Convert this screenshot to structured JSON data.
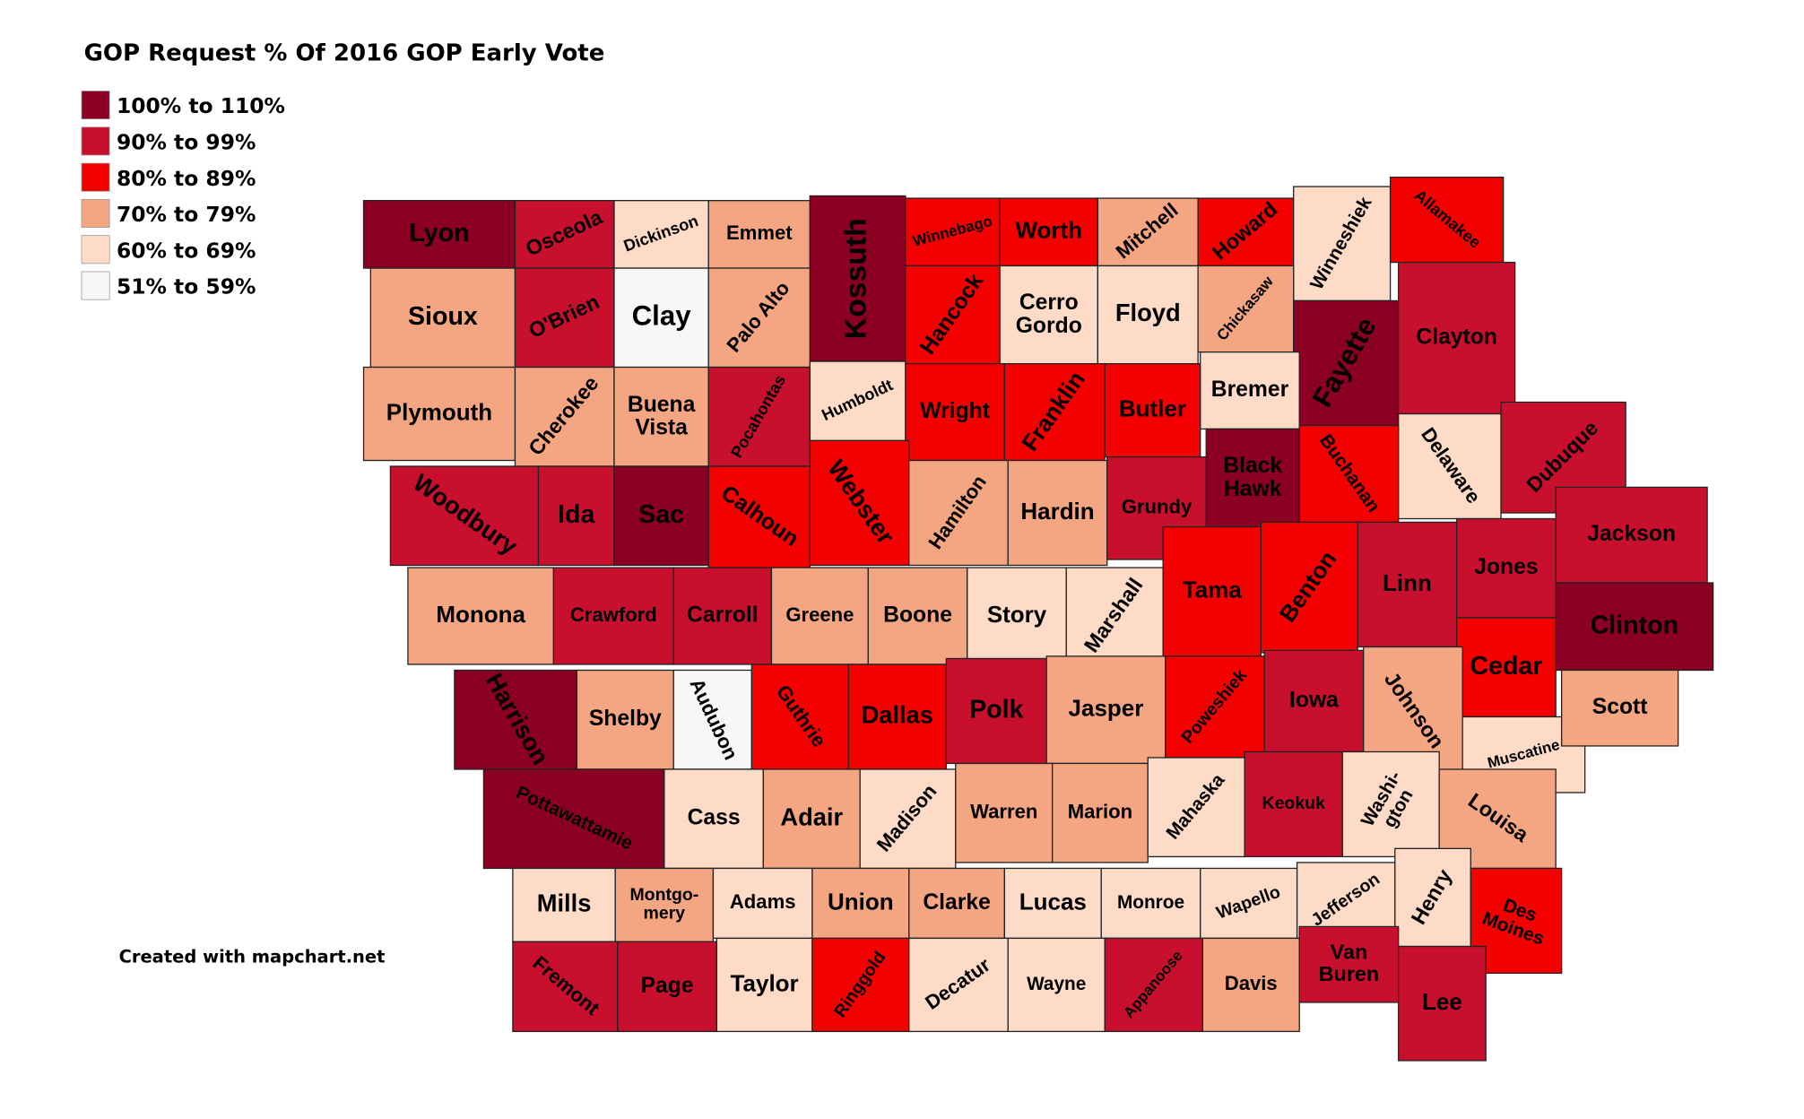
{
  "title": "GOP Request % Of 2016 GOP Early Vote",
  "legend": [
    {
      "label": "100% to 110%",
      "color": "#8b0022"
    },
    {
      "label": "90% to 99%",
      "color": "#c8102e"
    },
    {
      "label": "80% to 89%",
      "color": "#f50000"
    },
    {
      "label": "70% to 79%",
      "color": "#f4a582"
    },
    {
      "label": "60% to 69%",
      "color": "#fddbc7"
    },
    {
      "label": "51% to 59%",
      "color": "#f7f7f7"
    }
  ],
  "footer": "Created with mapchart.net",
  "counties": [
    {
      "name": "Lyon",
      "group": 0
    },
    {
      "name": "Osceola",
      "group": 1
    },
    {
      "name": "Dickinson",
      "group": 4
    },
    {
      "name": "Emmet",
      "group": 3
    },
    {
      "name": "Kossuth",
      "group": 0
    },
    {
      "name": "Winnebago",
      "group": 2
    },
    {
      "name": "Worth",
      "group": 2
    },
    {
      "name": "Mitchell",
      "group": 3
    },
    {
      "name": "Howard",
      "group": 2
    },
    {
      "name": "Winneshiek",
      "group": 4
    },
    {
      "name": "Allamakee",
      "group": 2
    },
    {
      "name": "Sioux",
      "group": 3
    },
    {
      "name": "O'Brien",
      "group": 1
    },
    {
      "name": "Clay",
      "group": 5
    },
    {
      "name": "Palo Alto",
      "group": 3
    },
    {
      "name": "Hancock",
      "group": 2
    },
    {
      "name": "Cerro Gordo",
      "group": 4
    },
    {
      "name": "Floyd",
      "group": 4
    },
    {
      "name": "Chickasaw",
      "group": 3
    },
    {
      "name": "Fayette",
      "group": 0
    },
    {
      "name": "Clayton",
      "group": 1
    },
    {
      "name": "Plymouth",
      "group": 3
    },
    {
      "name": "Cherokee",
      "group": 3
    },
    {
      "name": "Buena Vista",
      "group": 3
    },
    {
      "name": "Pocahontas",
      "group": 1
    },
    {
      "name": "Humboldt",
      "group": 4
    },
    {
      "name": "Wright",
      "group": 2
    },
    {
      "name": "Franklin",
      "group": 2
    },
    {
      "name": "Butler",
      "group": 2
    },
    {
      "name": "Bremer",
      "group": 4
    },
    {
      "name": "Delaware",
      "group": 4
    },
    {
      "name": "Dubuque",
      "group": 1
    },
    {
      "name": "Woodbury",
      "group": 1
    },
    {
      "name": "Ida",
      "group": 1
    },
    {
      "name": "Sac",
      "group": 0
    },
    {
      "name": "Calhoun",
      "group": 2
    },
    {
      "name": "Webster",
      "group": 2
    },
    {
      "name": "Hamilton",
      "group": 3
    },
    {
      "name": "Hardin",
      "group": 3
    },
    {
      "name": "Grundy",
      "group": 1
    },
    {
      "name": "Black Hawk",
      "group": 0
    },
    {
      "name": "Buchanan",
      "group": 2
    },
    {
      "name": "Linn",
      "group": 1
    },
    {
      "name": "Jones",
      "group": 1
    },
    {
      "name": "Jackson",
      "group": 1
    },
    {
      "name": "Monona",
      "group": 3
    },
    {
      "name": "Crawford",
      "group": 1
    },
    {
      "name": "Carroll",
      "group": 1
    },
    {
      "name": "Greene",
      "group": 3
    },
    {
      "name": "Boone",
      "group": 3
    },
    {
      "name": "Story",
      "group": 4
    },
    {
      "name": "Marshall",
      "group": 4
    },
    {
      "name": "Tama",
      "group": 2
    },
    {
      "name": "Benton",
      "group": 2
    },
    {
      "name": "Clinton",
      "group": 0
    },
    {
      "name": "Cedar",
      "group": 2
    },
    {
      "name": "Harrison",
      "group": 0
    },
    {
      "name": "Shelby",
      "group": 3
    },
    {
      "name": "Audubon",
      "group": 5
    },
    {
      "name": "Guthrie",
      "group": 2
    },
    {
      "name": "Dallas",
      "group": 2
    },
    {
      "name": "Polk",
      "group": 1
    },
    {
      "name": "Jasper",
      "group": 3
    },
    {
      "name": "Poweshiek",
      "group": 2
    },
    {
      "name": "Iowa",
      "group": 1
    },
    {
      "name": "Johnson",
      "group": 3
    },
    {
      "name": "Muscatine",
      "group": 4
    },
    {
      "name": "Scott",
      "group": 3
    },
    {
      "name": "Pottawattamie",
      "group": 0
    },
    {
      "name": "Cass",
      "group": 4
    },
    {
      "name": "Adair",
      "group": 3
    },
    {
      "name": "Madison",
      "group": 4
    },
    {
      "name": "Warren",
      "group": 3
    },
    {
      "name": "Marion",
      "group": 3
    },
    {
      "name": "Mahaska",
      "group": 4
    },
    {
      "name": "Keokuk",
      "group": 1
    },
    {
      "name": "Washi-gton",
      "group": 4
    },
    {
      "name": "Louisa",
      "group": 3
    },
    {
      "name": "Mills",
      "group": 4
    },
    {
      "name": "Montgo-mery",
      "group": 3
    },
    {
      "name": "Adams",
      "group": 4
    },
    {
      "name": "Union",
      "group": 3
    },
    {
      "name": "Clarke",
      "group": 3
    },
    {
      "name": "Lucas",
      "group": 4
    },
    {
      "name": "Monroe",
      "group": 4
    },
    {
      "name": "Wapello",
      "group": 4
    },
    {
      "name": "Jefferson",
      "group": 4
    },
    {
      "name": "Henry",
      "group": 4
    },
    {
      "name": "Des Moines",
      "group": 2
    },
    {
      "name": "Fremont",
      "group": 1
    },
    {
      "name": "Page",
      "group": 1
    },
    {
      "name": "Taylor",
      "group": 4
    },
    {
      "name": "Ringgold",
      "group": 2
    },
    {
      "name": "Decatur",
      "group": 4
    },
    {
      "name": "Wayne",
      "group": 4
    },
    {
      "name": "Appanoose",
      "group": 1
    },
    {
      "name": "Davis",
      "group": 3
    },
    {
      "name": "Van Buren",
      "group": 1
    },
    {
      "name": "Lee",
      "group": 1
    }
  ]
}
